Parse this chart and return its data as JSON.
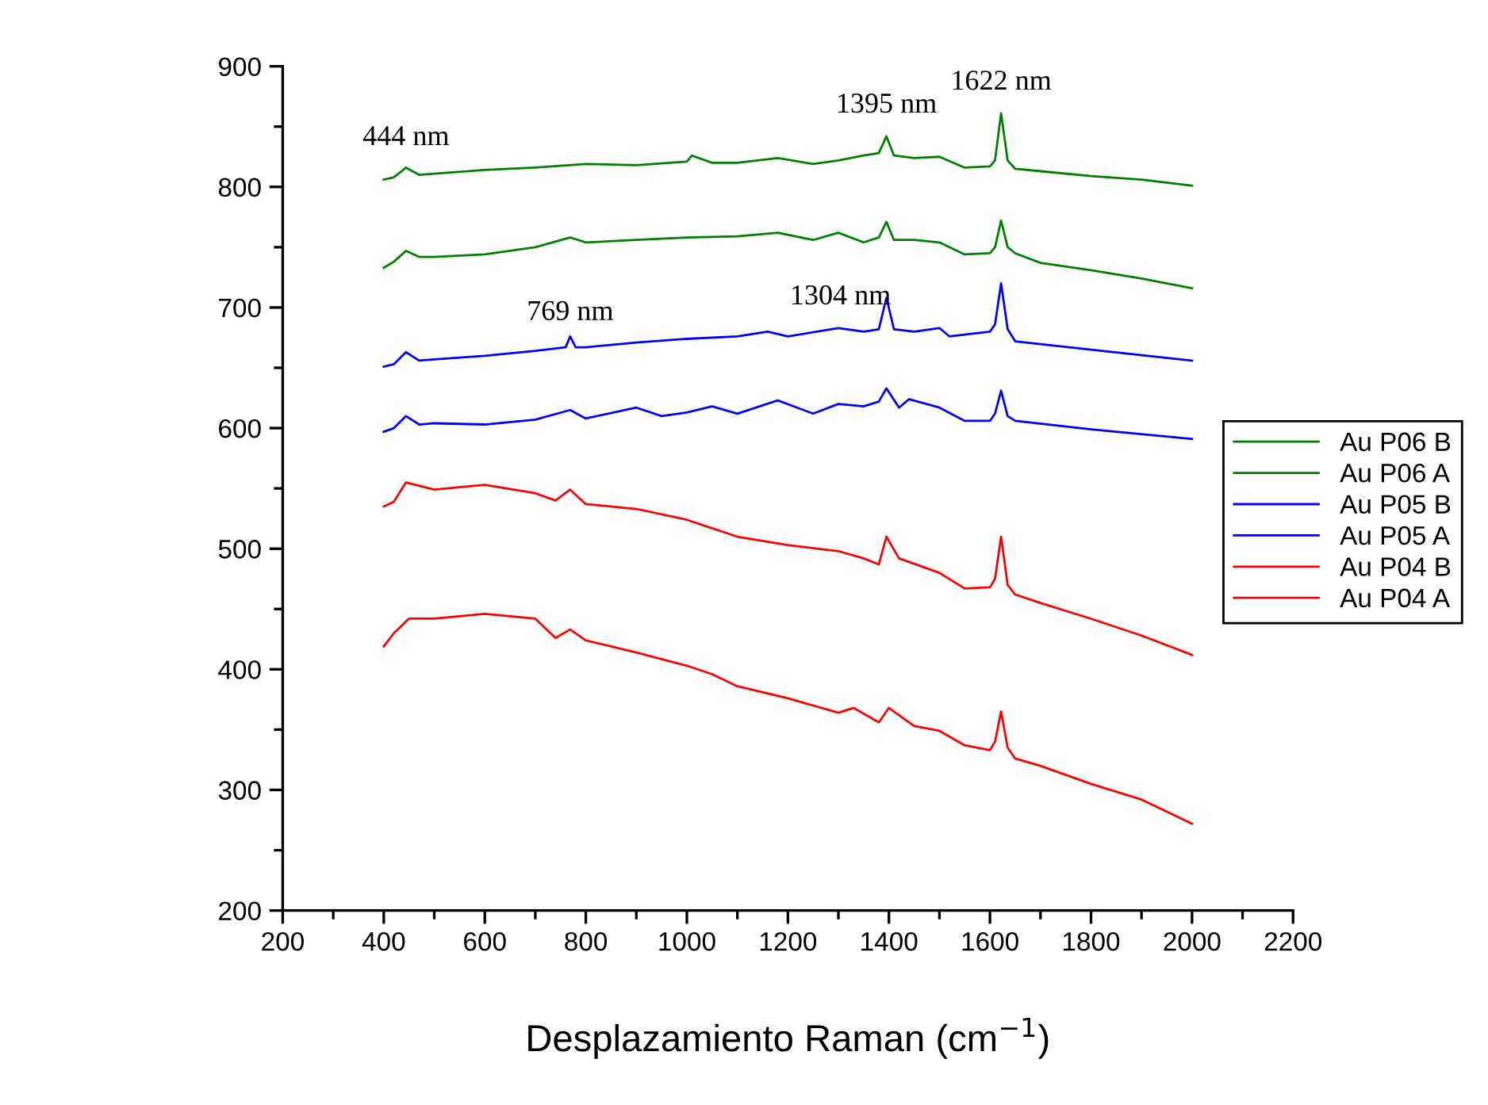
{
  "chart_data": {
    "type": "line",
    "xlabel": "Desplazamiento Raman (cm$^{−1}$)",
    "xlim": [
      200,
      2200
    ],
    "xticks": [
      200,
      400,
      600,
      800,
      1000,
      1200,
      1400,
      1600,
      1800,
      2000,
      2200
    ],
    "ylim": [
      200,
      900
    ],
    "yticks": [
      200,
      300,
      400,
      500,
      600,
      700,
      800,
      900
    ],
    "grid": false,
    "legend": "right",
    "marker": "none",
    "line_style": "solid",
    "annotations": [
      {
        "text": "444 nm",
        "x": 444,
        "y": 815
      },
      {
        "text": "1395 nm",
        "x": 1395,
        "y": 842
      },
      {
        "text": "1622 nm",
        "x": 1622,
        "y": 861
      },
      {
        "text": "769 nm",
        "x": 769,
        "y": 670
      },
      {
        "text": "1304 nm",
        "x": 1304,
        "y": 683
      }
    ],
    "series": [
      {
        "name": "Au P06 B",
        "color": "#008000",
        "x": [
          400,
          420,
          444,
          470,
          500,
          600,
          700,
          800,
          900,
          1000,
          1010,
          1050,
          1100,
          1180,
          1250,
          1300,
          1350,
          1380,
          1395,
          1410,
          1450,
          1500,
          1550,
          1600,
          1610,
          1622,
          1635,
          1650,
          1700,
          1800,
          1900,
          2000
        ],
        "values": [
          806,
          808,
          816,
          810,
          811,
          814,
          816,
          819,
          818,
          821,
          826,
          820,
          820,
          824,
          819,
          822,
          826,
          828,
          842,
          826,
          824,
          825,
          816,
          817,
          822,
          861,
          822,
          815,
          813,
          809,
          806,
          801
        ]
      },
      {
        "name": "Au P06 A",
        "color": "#008000",
        "x": [
          400,
          420,
          444,
          470,
          500,
          600,
          700,
          769,
          800,
          900,
          1000,
          1100,
          1180,
          1250,
          1300,
          1350,
          1380,
          1395,
          1410,
          1450,
          1500,
          1550,
          1600,
          1610,
          1622,
          1635,
          1650,
          1700,
          1800,
          1900,
          2000
        ],
        "values": [
          733,
          738,
          747,
          742,
          742,
          744,
          750,
          758,
          754,
          756,
          758,
          759,
          762,
          756,
          762,
          754,
          758,
          771,
          756,
          756,
          754,
          744,
          745,
          750,
          772,
          750,
          745,
          737,
          731,
          724,
          716
        ]
      },
      {
        "name": "Au P05 B",
        "color": "#0000ff",
        "x": [
          400,
          420,
          444,
          470,
          500,
          600,
          700,
          760,
          769,
          780,
          800,
          900,
          1000,
          1100,
          1160,
          1200,
          1300,
          1350,
          1380,
          1395,
          1410,
          1450,
          1500,
          1520,
          1600,
          1610,
          1622,
          1635,
          1650,
          1800,
          2000
        ],
        "values": [
          651,
          653,
          663,
          656,
          657,
          660,
          664,
          667,
          676,
          667,
          667,
          671,
          674,
          676,
          680,
          676,
          683,
          680,
          682,
          708,
          682,
          680,
          683,
          676,
          680,
          686,
          720,
          682,
          672,
          665,
          656
        ]
      },
      {
        "name": "Au P05 A",
        "color": "#0000ff",
        "x": [
          400,
          420,
          444,
          470,
          500,
          600,
          700,
          769,
          800,
          900,
          950,
          1000,
          1050,
          1100,
          1180,
          1250,
          1300,
          1350,
          1380,
          1395,
          1420,
          1440,
          1500,
          1550,
          1600,
          1610,
          1622,
          1635,
          1650,
          1800,
          2000
        ],
        "values": [
          597,
          600,
          610,
          603,
          604,
          603,
          607,
          615,
          608,
          617,
          610,
          613,
          618,
          612,
          623,
          612,
          620,
          618,
          622,
          633,
          617,
          624,
          617,
          606,
          606,
          612,
          631,
          610,
          606,
          599,
          591
        ]
      },
      {
        "name": "Au P04 B",
        "color": "#ff0000",
        "x": [
          400,
          420,
          444,
          500,
          600,
          700,
          740,
          769,
          800,
          900,
          1000,
          1050,
          1100,
          1200,
          1300,
          1350,
          1380,
          1395,
          1420,
          1500,
          1550,
          1600,
          1610,
          1622,
          1635,
          1650,
          1700,
          1800,
          1900,
          2000
        ],
        "values": [
          535,
          539,
          555,
          549,
          553,
          546,
          540,
          549,
          537,
          533,
          524,
          517,
          510,
          503,
          498,
          492,
          487,
          510,
          492,
          480,
          467,
          468,
          475,
          510,
          470,
          462,
          455,
          442,
          428,
          412
        ]
      },
      {
        "name": "Au P04 A",
        "color": "#ff0000",
        "x": [
          400,
          420,
          450,
          500,
          600,
          700,
          740,
          769,
          800,
          900,
          1000,
          1050,
          1100,
          1200,
          1300,
          1330,
          1380,
          1400,
          1450,
          1500,
          1550,
          1600,
          1610,
          1622,
          1635,
          1650,
          1700,
          1800,
          1900,
          2000
        ],
        "values": [
          419,
          430,
          442,
          442,
          446,
          442,
          426,
          433,
          424,
          414,
          403,
          396,
          386,
          376,
          364,
          368,
          356,
          368,
          353,
          349,
          337,
          333,
          340,
          365,
          335,
          326,
          320,
          305,
          292,
          272
        ]
      }
    ]
  }
}
